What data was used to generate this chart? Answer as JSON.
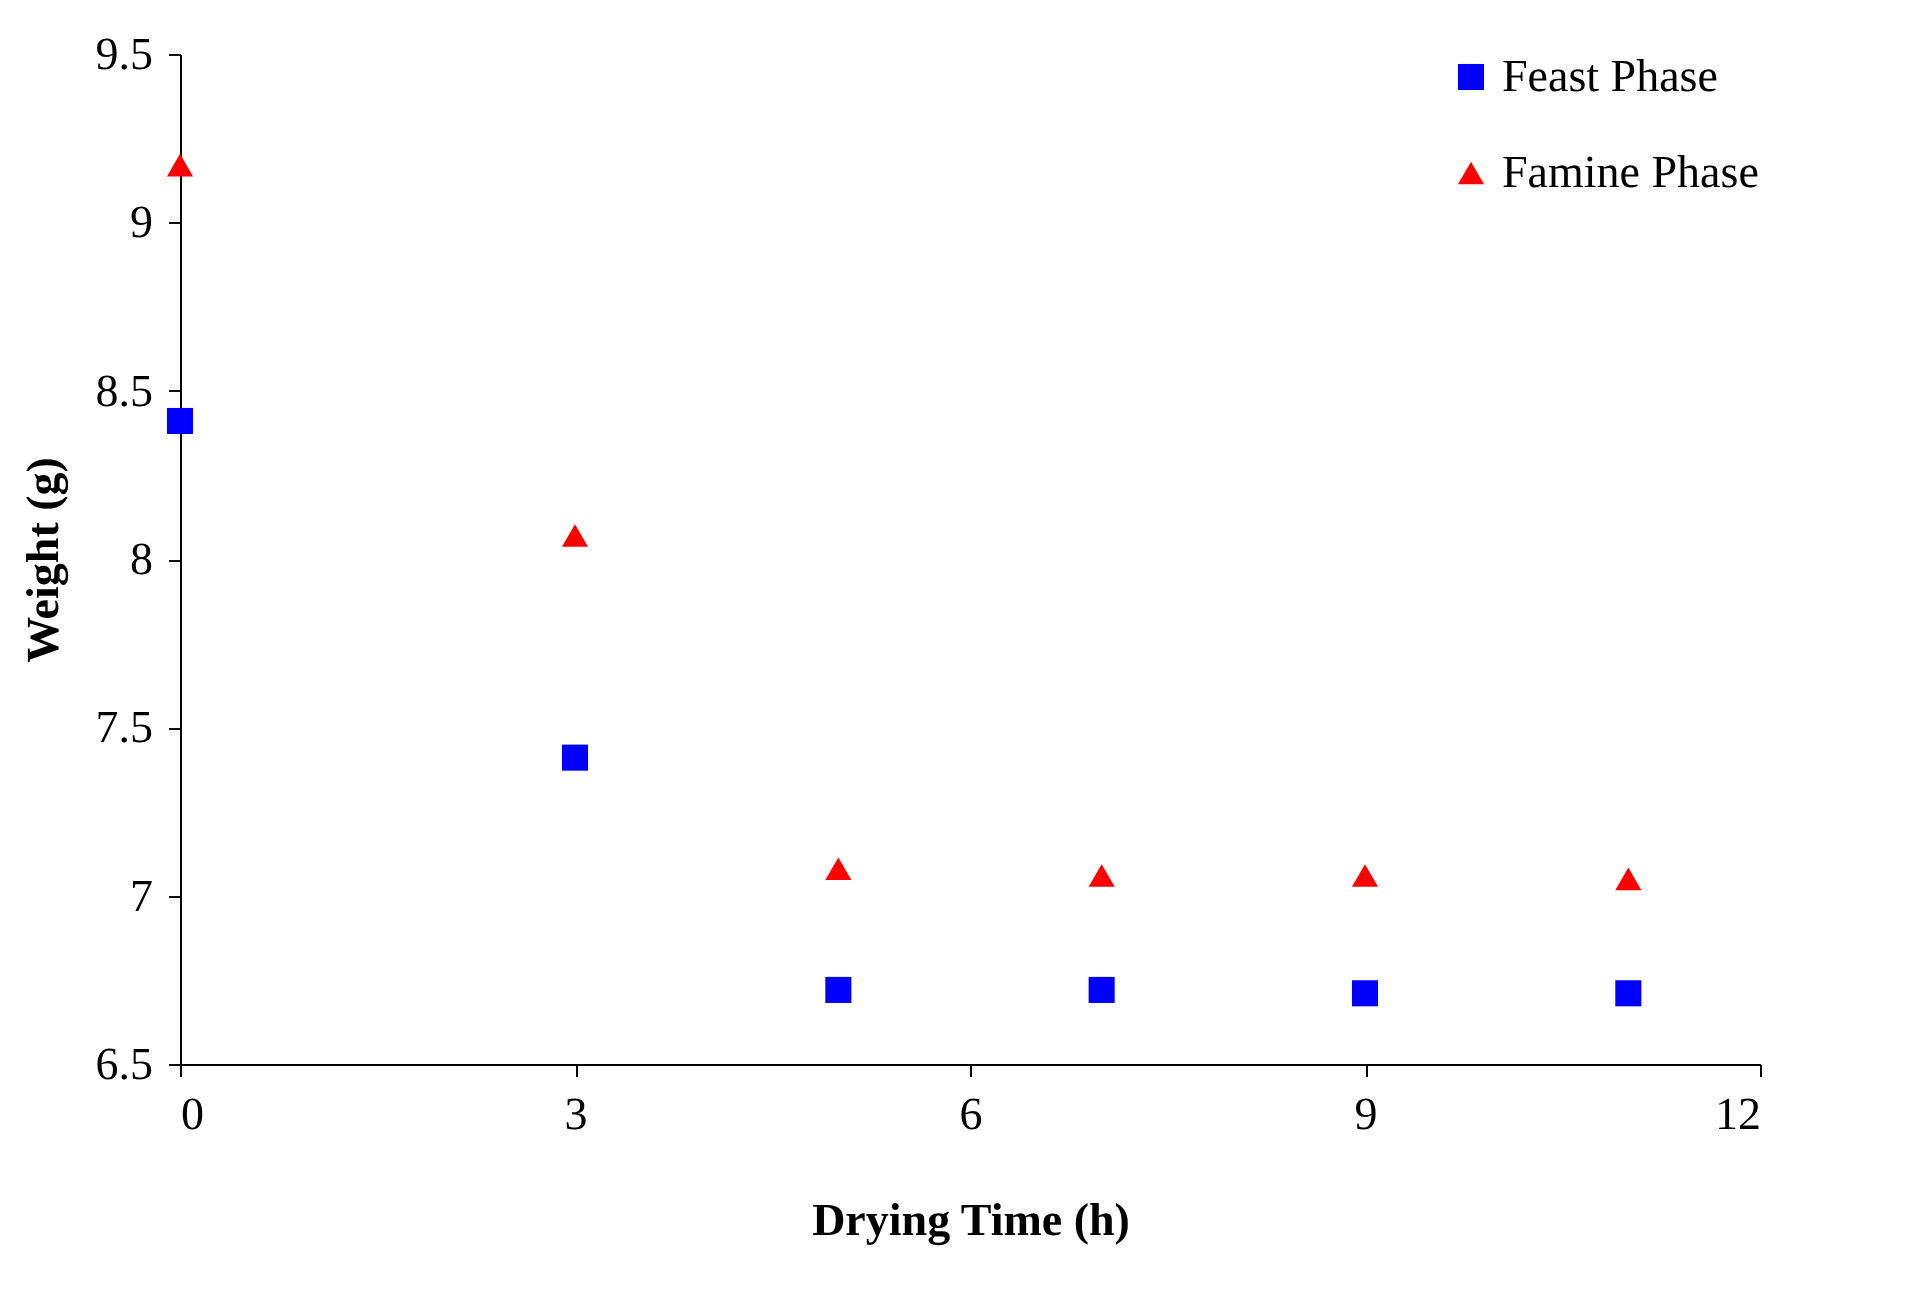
{
  "chart_data": {
    "type": "scatter",
    "xlabel": "Drying Time (h)",
    "ylabel": "Weight (g)",
    "x": [
      0,
      3,
      5,
      7,
      9,
      11
    ],
    "series": [
      {
        "name": "Feast Phase",
        "color": "#0000ff",
        "marker": "square",
        "values": [
          8.41,
          7.41,
          6.72,
          6.72,
          6.71,
          6.71
        ]
      },
      {
        "name": "Famine Phase",
        "color": "#ff0000",
        "marker": "triangle",
        "values": [
          9.17,
          8.07,
          7.08,
          7.06,
          7.06,
          7.05
        ]
      }
    ],
    "xlim": [
      0,
      12
    ],
    "xticks": [
      0,
      3,
      6,
      9,
      12
    ],
    "ylim": [
      6.5,
      9.5
    ],
    "yticks": [
      6.5,
      7,
      7.5,
      8,
      8.5,
      9,
      9.5
    ],
    "grid": false,
    "legend": "top right"
  }
}
